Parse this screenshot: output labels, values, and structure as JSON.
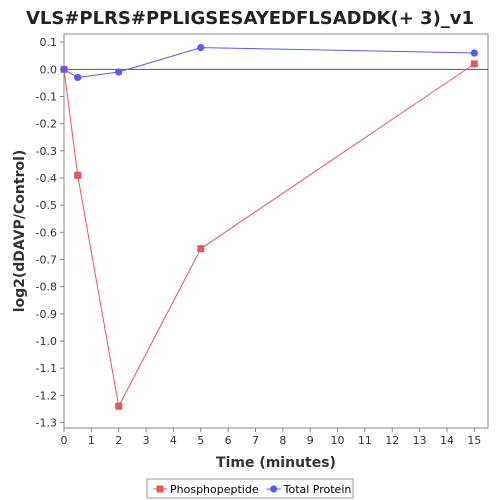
{
  "chart_data": {
    "type": "line",
    "title": "VLS#PLRS#PPLIGSESAYEDFLSADDK(+ 3)_v1",
    "xlabel": "Time (minutes)",
    "ylabel": "log2(dDAVP/Control)",
    "xlim": [
      0,
      15.5
    ],
    "ylim": [
      -1.32,
      0.13
    ],
    "xticks": [
      0,
      1,
      2,
      3,
      4,
      5,
      6,
      7,
      8,
      9,
      10,
      11,
      12,
      13,
      14,
      15
    ],
    "yticks": [
      0.1,
      0.0,
      -0.1,
      -0.2,
      -0.3,
      -0.4,
      -0.5,
      -0.6,
      -0.7,
      -0.8,
      -0.9,
      -1.0,
      -1.1,
      -1.2,
      -1.3
    ],
    "ytick_labels": [
      "0.1",
      "0.0",
      "-0.1",
      "-0.2",
      "-0.3",
      "-0.4",
      "-0.5",
      "-0.6",
      "-0.7",
      "-0.8",
      "-0.9",
      "-1.0",
      "-1.1",
      "-1.2",
      "-1.3"
    ],
    "reference_line_y": 0,
    "grid": false,
    "legend_position": "bottom",
    "series": [
      {
        "name": "Phosphopeptide",
        "color": "#e8585a",
        "marker": "square",
        "x": [
          0,
          0.5,
          2,
          5,
          15
        ],
        "y": [
          0.0,
          -0.39,
          -1.24,
          -0.66,
          0.02
        ]
      },
      {
        "name": "Total Protein",
        "color": "#5b5bf0",
        "marker": "circle",
        "x": [
          0,
          0.5,
          2,
          5,
          15
        ],
        "y": [
          0.0,
          -0.03,
          -0.01,
          0.08,
          0.06
        ]
      }
    ]
  }
}
